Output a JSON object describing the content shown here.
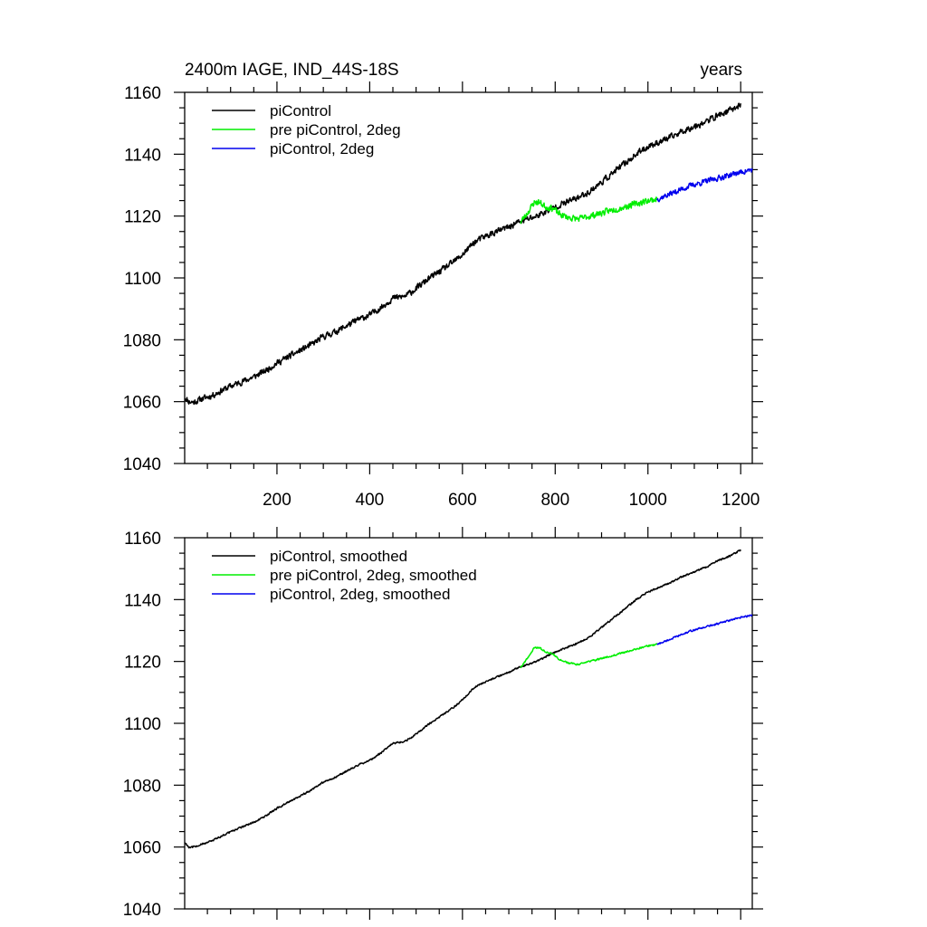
{
  "figure": {
    "title_left": "2400m IAGE, IND_44S-18S",
    "title_right": "years"
  },
  "chart_data": [
    {
      "type": "line",
      "title": "2400m IAGE, IND_44S-18S",
      "title_right": "years",
      "xlim": [
        1,
        1225
      ],
      "ylim": [
        1040,
        1160
      ],
      "x_ticks": [
        200,
        400,
        600,
        800,
        1000,
        1200
      ],
      "x_tick_labels": [
        "200",
        "400",
        "600",
        "800",
        "1000",
        "1200"
      ],
      "y_ticks": [
        1040,
        1060,
        1080,
        1100,
        1120,
        1140,
        1160
      ],
      "y_tick_labels": [
        "1040",
        "1060",
        "1080",
        "1100",
        "1120",
        "1140",
        "1160"
      ],
      "legend_position": "top-left",
      "series": [
        {
          "name": "piControl",
          "color": "#000000",
          "noise": 0.9,
          "seed": 11,
          "points": [
            [
              1,
              1061.5
            ],
            [
              10,
              1060
            ],
            [
              20,
              1059.8
            ],
            [
              40,
              1061
            ],
            [
              60,
              1062
            ],
            [
              80,
              1063.5
            ],
            [
              100,
              1065
            ],
            [
              125,
              1066.5
            ],
            [
              150,
              1068
            ],
            [
              175,
              1070
            ],
            [
              200,
              1072.5
            ],
            [
              225,
              1074.5
            ],
            [
              250,
              1076.5
            ],
            [
              275,
              1078.5
            ],
            [
              300,
              1081
            ],
            [
              325,
              1082.5
            ],
            [
              350,
              1084.5
            ],
            [
              375,
              1086.5
            ],
            [
              400,
              1088
            ],
            [
              425,
              1090.5
            ],
            [
              450,
              1093.5
            ],
            [
              475,
              1094
            ],
            [
              500,
              1096.5
            ],
            [
              525,
              1099.5
            ],
            [
              550,
              1102
            ],
            [
              575,
              1104.5
            ],
            [
              600,
              1107.5
            ],
            [
              625,
              1111.5
            ],
            [
              650,
              1113.5
            ],
            [
              675,
              1115
            ],
            [
              700,
              1116.5
            ],
            [
              720,
              1118
            ],
            [
              740,
              1119
            ],
            [
              760,
              1120
            ],
            [
              780,
              1121.5
            ],
            [
              800,
              1123
            ],
            [
              825,
              1124.5
            ],
            [
              850,
              1126
            ],
            [
              875,
              1128
            ],
            [
              900,
              1131
            ],
            [
              925,
              1134
            ],
            [
              950,
              1137
            ],
            [
              975,
              1140
            ],
            [
              1000,
              1142.5
            ],
            [
              1025,
              1144
            ],
            [
              1050,
              1145.5
            ],
            [
              1075,
              1147.5
            ],
            [
              1100,
              1149
            ],
            [
              1125,
              1150.5
            ],
            [
              1150,
              1152.5
            ],
            [
              1175,
              1154
            ],
            [
              1200,
              1156
            ]
          ]
        },
        {
          "name": "pre piControl, 2deg",
          "color": "#00ee00",
          "noise": 0.9,
          "seed": 23,
          "points": [
            [
              725,
              1118
            ],
            [
              740,
              1121
            ],
            [
              755,
              1124.5
            ],
            [
              765,
              1124.5
            ],
            [
              780,
              1123
            ],
            [
              795,
              1122.5
            ],
            [
              810,
              1120.5
            ],
            [
              830,
              1119.5
            ],
            [
              850,
              1119
            ],
            [
              875,
              1120
            ],
            [
              900,
              1121
            ],
            [
              925,
              1122
            ],
            [
              950,
              1123
            ],
            [
              975,
              1124
            ],
            [
              1000,
              1125
            ],
            [
              1020,
              1125.5
            ]
          ]
        },
        {
          "name": "piControl, 2deg",
          "color": "#0000ee",
          "noise": 0.8,
          "seed": 37,
          "points": [
            [
              1020,
              1125.5
            ],
            [
              1045,
              1127
            ],
            [
              1070,
              1128.5
            ],
            [
              1095,
              1130
            ],
            [
              1120,
              1131
            ],
            [
              1145,
              1132
            ],
            [
              1170,
              1133
            ],
            [
              1195,
              1134
            ],
            [
              1225,
              1135
            ]
          ]
        }
      ]
    },
    {
      "type": "line",
      "title": "",
      "xlim": [
        1,
        1225
      ],
      "ylim": [
        1040,
        1160
      ],
      "x_ticks": [
        200,
        400,
        600,
        800,
        1000,
        1200
      ],
      "y_ticks": [
        1040,
        1060,
        1080,
        1100,
        1120,
        1140,
        1160
      ],
      "y_tick_labels": [
        "1040",
        "1060",
        "1080",
        "1100",
        "1120",
        "1140",
        "1160"
      ],
      "legend_position": "top-left",
      "series": [
        {
          "name": "piControl, smoothed",
          "color": "#000000",
          "noise": 0.25,
          "seed": 11,
          "points": [
            [
              1,
              1061.5
            ],
            [
              10,
              1060
            ],
            [
              20,
              1060
            ],
            [
              40,
              1061
            ],
            [
              60,
              1062
            ],
            [
              80,
              1063.5
            ],
            [
              100,
              1065
            ],
            [
              125,
              1066.5
            ],
            [
              150,
              1068
            ],
            [
              175,
              1070
            ],
            [
              200,
              1072.5
            ],
            [
              225,
              1074.5
            ],
            [
              250,
              1076.5
            ],
            [
              275,
              1078.5
            ],
            [
              300,
              1081
            ],
            [
              325,
              1082.5
            ],
            [
              350,
              1084.5
            ],
            [
              375,
              1086.5
            ],
            [
              400,
              1088
            ],
            [
              425,
              1090.5
            ],
            [
              450,
              1093.5
            ],
            [
              475,
              1094
            ],
            [
              500,
              1096.5
            ],
            [
              525,
              1099.5
            ],
            [
              550,
              1102
            ],
            [
              575,
              1104.5
            ],
            [
              600,
              1107.5
            ],
            [
              625,
              1111.5
            ],
            [
              650,
              1113.5
            ],
            [
              675,
              1115
            ],
            [
              700,
              1116.5
            ],
            [
              720,
              1118
            ],
            [
              740,
              1119
            ],
            [
              760,
              1120
            ],
            [
              780,
              1121.5
            ],
            [
              800,
              1123
            ],
            [
              825,
              1124.5
            ],
            [
              850,
              1126
            ],
            [
              875,
              1128
            ],
            [
              900,
              1131
            ],
            [
              925,
              1134
            ],
            [
              950,
              1137
            ],
            [
              975,
              1140
            ],
            [
              1000,
              1142.5
            ],
            [
              1025,
              1144
            ],
            [
              1050,
              1145.5
            ],
            [
              1075,
              1147.5
            ],
            [
              1100,
              1149
            ],
            [
              1125,
              1150.5
            ],
            [
              1150,
              1152.5
            ],
            [
              1175,
              1154
            ],
            [
              1200,
              1156
            ]
          ]
        },
        {
          "name": "pre piControl, 2deg, smoothed",
          "color": "#00ee00",
          "noise": 0.25,
          "seed": 23,
          "points": [
            [
              725,
              1118
            ],
            [
              740,
              1121
            ],
            [
              755,
              1124.5
            ],
            [
              765,
              1124.5
            ],
            [
              780,
              1123
            ],
            [
              795,
              1122.5
            ],
            [
              810,
              1120.5
            ],
            [
              830,
              1119.5
            ],
            [
              850,
              1119
            ],
            [
              875,
              1120
            ],
            [
              900,
              1121
            ],
            [
              925,
              1122
            ],
            [
              950,
              1123
            ],
            [
              975,
              1124
            ],
            [
              1000,
              1125
            ],
            [
              1020,
              1125.5
            ]
          ]
        },
        {
          "name": "piControl, 2deg, smoothed",
          "color": "#0000ee",
          "noise": 0.25,
          "seed": 37,
          "points": [
            [
              1020,
              1125.5
            ],
            [
              1045,
              1127
            ],
            [
              1070,
              1128.5
            ],
            [
              1095,
              1130
            ],
            [
              1120,
              1131
            ],
            [
              1145,
              1132
            ],
            [
              1170,
              1133
            ],
            [
              1195,
              1134
            ],
            [
              1225,
              1135
            ]
          ]
        }
      ]
    }
  ]
}
